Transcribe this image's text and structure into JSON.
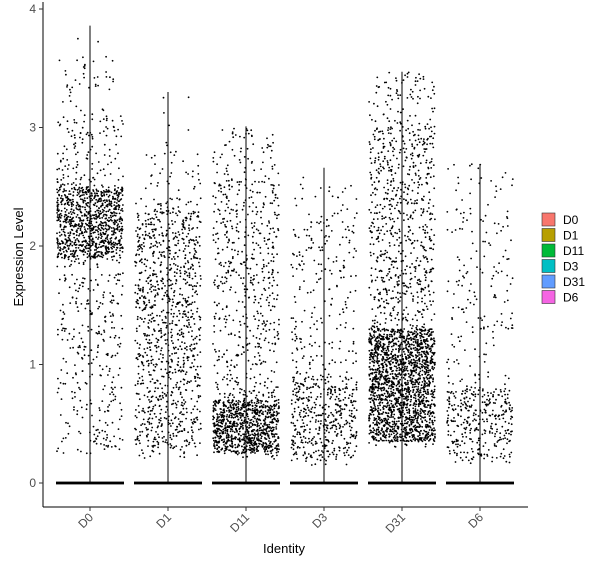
{
  "chart_data": {
    "type": "scatter",
    "subtype": "violin-jitter",
    "title": "",
    "xlabel": "Identity",
    "ylabel": "Expression Level",
    "categories": [
      "D0",
      "D1",
      "D11",
      "D3",
      "D31",
      "D6"
    ],
    "ylim": [
      -0.2,
      4.05
    ],
    "yticks": [
      0,
      1,
      2,
      3,
      4
    ],
    "grid": false,
    "legend": {
      "position": "right",
      "entries": [
        {
          "name": "D0",
          "color": "#F8766D"
        },
        {
          "name": "D1",
          "color": "#B79F00"
        },
        {
          "name": "D11",
          "color": "#00BA38"
        },
        {
          "name": "D3",
          "color": "#00BFC4"
        },
        {
          "name": "D31",
          "color": "#619CFF"
        },
        {
          "name": "D6",
          "color": "#F564E3"
        }
      ]
    },
    "groups": [
      {
        "name": "D0",
        "max": 3.86,
        "nonzero_points": 1400,
        "dense_band": [
          1.9,
          2.5
        ],
        "spread": [
          0.25,
          3.6
        ]
      },
      {
        "name": "D1",
        "max": 3.3,
        "nonzero_points": 1100,
        "dense_band": [
          0.3,
          2.3
        ],
        "spread": [
          0.2,
          2.8
        ]
      },
      {
        "name": "D11",
        "max": 3.01,
        "nonzero_points": 1500,
        "dense_band": [
          0.25,
          0.7
        ],
        "spread": [
          0.2,
          3.0
        ]
      },
      {
        "name": "D3",
        "max": 2.66,
        "nonzero_points": 650,
        "dense_band": [
          0.2,
          0.9
        ],
        "spread": [
          0.15,
          2.6
        ]
      },
      {
        "name": "D31",
        "max": 3.47,
        "nonzero_points": 2600,
        "dense_band": [
          0.35,
          1.3
        ],
        "spread": [
          0.3,
          3.47
        ]
      },
      {
        "name": "D6",
        "max": 2.69,
        "nonzero_points": 500,
        "dense_band": [
          0.2,
          0.8
        ],
        "spread": [
          0.15,
          2.7
        ]
      }
    ],
    "point_color": "#000000"
  }
}
